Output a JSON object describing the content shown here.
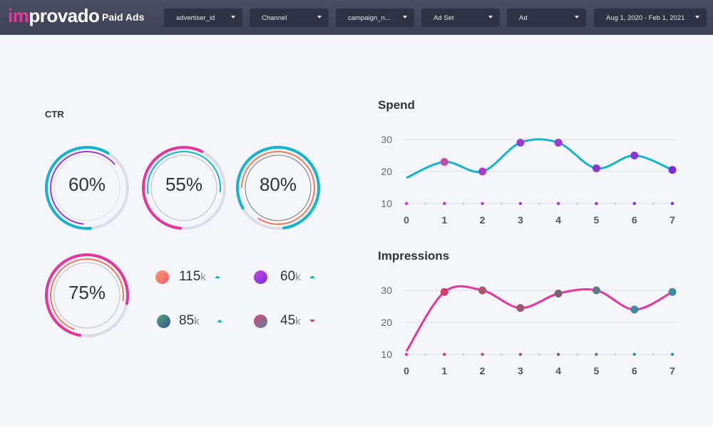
{
  "header": {
    "logo_prefix": "im",
    "logo_rest": "provado",
    "page_title": "Paid Ads",
    "filters": [
      {
        "label": "advertiser_id"
      },
      {
        "label": "Channel"
      },
      {
        "label": "campaign_n..."
      },
      {
        "label": "Ad Set"
      },
      {
        "label": "Ad"
      },
      {
        "label": "Aug 1, 2020 - Feb 1, 2021"
      }
    ]
  },
  "ctr": {
    "label": "CTR",
    "rings": [
      {
        "value": "60%",
        "percent": 60
      },
      {
        "value": "55%",
        "percent": 55
      },
      {
        "value": "80%",
        "percent": 80
      },
      {
        "value": "75%",
        "percent": 75
      }
    ],
    "stats": [
      {
        "value": "115",
        "unit": "k",
        "trend": "up",
        "color_from": "#ff9a6b",
        "color_to": "#ef5a6f"
      },
      {
        "value": "60",
        "unit": "k",
        "trend": "up",
        "color_from": "#c84be0",
        "color_to": "#7a2ae0"
      },
      {
        "value": "85",
        "unit": "k",
        "trend": "up",
        "color_from": "#4caf75",
        "color_to": "#3a4a9a"
      },
      {
        "value": "45",
        "unit": "k",
        "trend": "down",
        "color_from": "#e3456b",
        "color_to": "#4a88a8"
      }
    ]
  },
  "colors": {
    "teal": "#13b5cc",
    "magenta": "#e8359c",
    "purple": "#9b3bd6",
    "orange": "#f07a5e",
    "grey_track": "#dcdde3"
  },
  "chart_data": [
    {
      "type": "line",
      "title": "Spend",
      "x": [
        0,
        1,
        2,
        3,
        4,
        5,
        6,
        7
      ],
      "series": [
        {
          "values": [
            18,
            23,
            20,
            29,
            29,
            21,
            25,
            20.5
          ]
        }
      ],
      "yticks": [
        10,
        20,
        30
      ],
      "ylim": [
        10,
        30
      ],
      "grid": true
    },
    {
      "type": "line",
      "title": "Impressions",
      "x": [
        0,
        1,
        2,
        3,
        4,
        5,
        6,
        7
      ],
      "series": [
        {
          "values": [
            11,
            29.5,
            30,
            24.5,
            29,
            30,
            24,
            29.5
          ]
        }
      ],
      "yticks": [
        10,
        20,
        30
      ],
      "ylim": [
        10,
        30
      ],
      "grid": true
    }
  ]
}
